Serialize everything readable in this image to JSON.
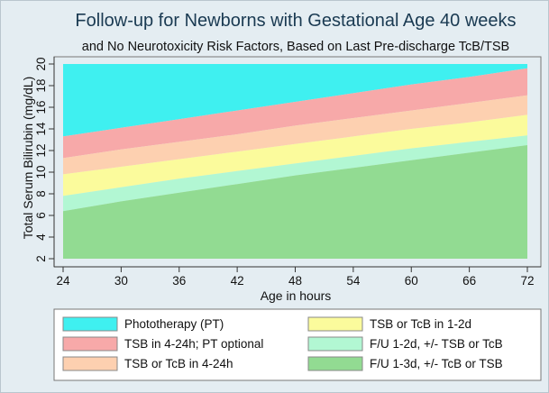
{
  "chart_data": {
    "type": "area",
    "title": "Follow-up for Newborns with Gestational Age 40 weeks",
    "subtitle": "and No Neurotoxicity Risk Factors, Based on Last Pre-discharge TcB/TSB",
    "xlabel": "Age in hours",
    "ylabel": "Total Serum Bilirubin (mg/dL)",
    "xlim": [
      24,
      72
    ],
    "ylim": [
      2,
      20
    ],
    "x_ticks": [
      24,
      30,
      36,
      42,
      48,
      54,
      60,
      66,
      72
    ],
    "y_ticks": [
      2,
      4,
      6,
      8,
      10,
      12,
      14,
      16,
      18,
      20
    ],
    "grid": false,
    "legend_position": "bottom",
    "x": [
      24,
      30,
      36,
      42,
      48,
      54,
      60,
      66,
      72
    ],
    "thresholds": {
      "pt_threshold": [
        13.3,
        14.1,
        14.9,
        15.7,
        16.5,
        17.3,
        18.1,
        18.8,
        19.6
      ],
      "orange_lower": [
        11.3,
        12.1,
        12.8,
        13.5,
        14.3,
        15.0,
        15.7,
        16.4,
        17.1
      ],
      "yellow_lower": [
        9.8,
        10.5,
        11.2,
        11.9,
        12.6,
        13.3,
        14.0,
        14.6,
        15.3
      ],
      "mint_lower": [
        7.8,
        8.6,
        9.4,
        10.1,
        10.8,
        11.5,
        12.2,
        12.8,
        13.4
      ],
      "green_top": [
        6.4,
        7.3,
        8.1,
        8.9,
        9.7,
        10.4,
        11.1,
        11.8,
        12.5
      ]
    },
    "series": [
      {
        "name": "Phototherapy (PT)",
        "color": "#3ff0f0"
      },
      {
        "name": "TSB in 4-24h; PT optional",
        "color": "#f7a9a9"
      },
      {
        "name": "TSB or TcB in 4-24h",
        "color": "#fdd0b0"
      },
      {
        "name": "TSB or TcB in 1-2d",
        "color": "#fbfb9c"
      },
      {
        "name": "F/U 1-2d, +/- TSB or TcB",
        "color": "#b2f7d3"
      },
      {
        "name": "F/U 1-3d, +/- TcB or TSB",
        "color": "#92db92"
      }
    ]
  },
  "colors": {
    "page_bg": "#e4edf2",
    "plot_border": "#777777",
    "legend_bg": "#ffffff"
  }
}
